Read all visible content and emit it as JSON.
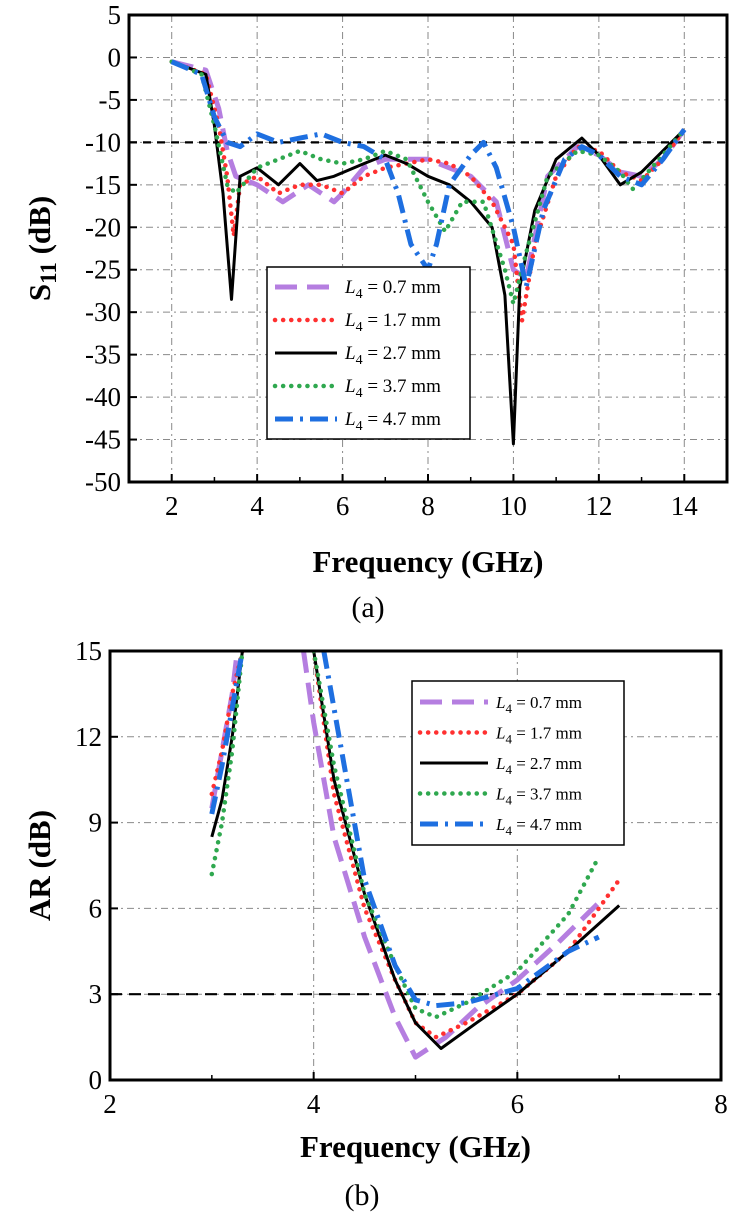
{
  "chart_data": [
    {
      "id": "a",
      "type": "line",
      "panel_label": "(a)",
      "xlabel": "Frequency (GHz)",
      "ylabel_main": "S",
      "ylabel_sub": "11",
      "ylabel_unit": " (dB)",
      "xlim": [
        1,
        15
      ],
      "ylim": [
        -50,
        5
      ],
      "xticks": [
        2,
        4,
        6,
        8,
        10,
        12,
        14
      ],
      "xtick_labels": [
        "2",
        "4",
        "6",
        "8",
        "10",
        "12",
        "14"
      ],
      "yticks": [
        5,
        0,
        -5,
        -10,
        -15,
        -20,
        -25,
        -30,
        -35,
        -40,
        -45,
        -50
      ],
      "ytick_labels": [
        "5",
        "0",
        "-5",
        "-10",
        "-15",
        "-20",
        "-25",
        "-30",
        "-35",
        "-40",
        "-45",
        "-50"
      ],
      "reference_line": -10,
      "legend_position": "lower-center",
      "series": [
        {
          "name": "L4 = 0.7 mm",
          "legend_var": "L",
          "legend_sub": "4",
          "legend_rest": " = 0.7 mm",
          "color": "#b57ee0",
          "style": "dash",
          "x": [
            2,
            2.8,
            3.1,
            3.3,
            3.5,
            4,
            4.6,
            5.2,
            5.8,
            6,
            6.5,
            7,
            8,
            9,
            9.6,
            10,
            10.3,
            10.8,
            11.5,
            12,
            12.5,
            13,
            13.5,
            14
          ],
          "y": [
            -0.5,
            -1.5,
            -6,
            -11,
            -14,
            -15,
            -17,
            -15,
            -17,
            -16,
            -13,
            -12,
            -12,
            -14,
            -17,
            -25,
            -26,
            -14,
            -10.5,
            -11.5,
            -13.5,
            -14,
            -12,
            -8.5
          ]
        },
        {
          "name": "L4 = 1.7 mm",
          "legend_var": "L",
          "legend_sub": "4",
          "legend_rest": " = 1.7 mm",
          "color": "#ff3030",
          "style": "dot",
          "x": [
            2,
            2.8,
            3.1,
            3.3,
            3.45,
            3.6,
            4,
            4.5,
            5,
            5.5,
            6,
            6.5,
            7,
            7.5,
            8,
            8.5,
            9,
            9.5,
            10,
            10.2,
            10.5,
            11,
            11.5,
            12,
            12.5,
            13,
            13.5,
            14
          ],
          "y": [
            -0.5,
            -2,
            -8,
            -14,
            -21,
            -15,
            -14,
            -16,
            -15,
            -15,
            -16,
            -14,
            -13,
            -12.5,
            -12,
            -12.5,
            -14,
            -17,
            -22,
            -31,
            -22,
            -14,
            -10.5,
            -11,
            -13.5,
            -14.5,
            -12,
            -8.5
          ]
        },
        {
          "name": "L4 = 2.7 mm",
          "legend_var": "L",
          "legend_sub": "4",
          "legend_rest": " = 2.7 mm",
          "color": "#000000",
          "style": "solid",
          "x": [
            2,
            2.8,
            3.0,
            3.2,
            3.4,
            3.6,
            4,
            4.5,
            5,
            5.4,
            5.8,
            6.5,
            7,
            7.5,
            8,
            8.5,
            9,
            9.5,
            9.8,
            10,
            10.15,
            10.5,
            11,
            11.6,
            12,
            12.5,
            13,
            14
          ],
          "y": [
            -0.5,
            -2,
            -8,
            -16,
            -28.5,
            -14,
            -13,
            -15,
            -12.5,
            -14.5,
            -14,
            -12.5,
            -11.5,
            -12.5,
            -14,
            -15,
            -17,
            -20,
            -28,
            -45.5,
            -27,
            -18,
            -12,
            -9.5,
            -11.5,
            -15,
            -13.5,
            -8.5
          ]
        },
        {
          "name": "L4 = 3.7 mm",
          "legend_var": "L",
          "legend_sub": "4",
          "legend_rest": " = 3.7 mm",
          "color": "#2fa84f",
          "style": "dot",
          "x": [
            2,
            2.7,
            3.0,
            3.3,
            3.5,
            4,
            4.5,
            5,
            5.5,
            6,
            6.5,
            7,
            7.5,
            8,
            8.4,
            8.8,
            9.3,
            9.8,
            10,
            10.3,
            10.8,
            11.5,
            12,
            12.5,
            12.8,
            13.5,
            14
          ],
          "y": [
            -0.5,
            -2,
            -8,
            -15,
            -16,
            -13,
            -12,
            -11,
            -12,
            -12.5,
            -12,
            -11,
            -12,
            -17,
            -20.5,
            -17,
            -17,
            -25,
            -29,
            -23,
            -14,
            -11,
            -11.5,
            -13.5,
            -15.5,
            -11.5,
            -8.5
          ]
        },
        {
          "name": "L4 = 4.7 mm",
          "legend_var": "L",
          "legend_sub": "4",
          "legend_rest": " = 4.7 mm",
          "color": "#1e6fe0",
          "style": "dashdot",
          "x": [
            2,
            2.7,
            3.0,
            3.3,
            3.6,
            4,
            4.5,
            5,
            5.5,
            6,
            6.5,
            7,
            7.3,
            7.6,
            8,
            8.2,
            8.5,
            9,
            9.3,
            9.6,
            10,
            10.3,
            10.7,
            11.2,
            11.6,
            12,
            12.5,
            13,
            13.5,
            14
          ],
          "y": [
            -0.5,
            -2,
            -7,
            -10,
            -10.5,
            -9,
            -10,
            -9.5,
            -9,
            -10,
            -10.5,
            -12,
            -16,
            -22,
            -25,
            -22,
            -15,
            -11.5,
            -10,
            -13,
            -20,
            -27,
            -18,
            -12,
            -10.5,
            -11.5,
            -14,
            -15,
            -12,
            -8.5
          ]
        }
      ]
    },
    {
      "id": "b",
      "type": "line",
      "panel_label": "(b)",
      "xlabel": "Frequency (GHz)",
      "ylabel": "AR (dB)",
      "xlim": [
        2,
        8
      ],
      "ylim": [
        0,
        15
      ],
      "xticks": [
        2,
        4,
        6,
        8
      ],
      "xtick_labels": [
        "2",
        "4",
        "6",
        "8"
      ],
      "yticks": [
        0,
        3,
        6,
        9,
        12,
        15
      ],
      "ytick_labels": [
        "0",
        "3",
        "6",
        "9",
        "12",
        "15"
      ],
      "reference_line": 3,
      "legend_position": "top-right",
      "series": [
        {
          "name": "L4 = 0.7 mm",
          "legend_var": "L",
          "legend_sub": "4",
          "legend_rest": " = 0.7 mm",
          "color": "#b57ee0",
          "style": "dash",
          "x": [
            3.0,
            3.1,
            3.2,
            3.25,
            null,
            3.9,
            4.0,
            4.2,
            4.5,
            4.8,
            5.0,
            5.3,
            5.6,
            6.0,
            6.4,
            6.8
          ],
          "y": [
            9.5,
            11.5,
            13.5,
            15,
            null,
            15,
            12.5,
            8.5,
            5,
            2.2,
            0.8,
            1.5,
            2.5,
            3.5,
            4.8,
            6.2
          ]
        },
        {
          "name": "L4 = 1.7 mm",
          "legend_var": "L",
          "legend_sub": "4",
          "legend_rest": " = 1.7 mm",
          "color": "#ff3030",
          "style": "dot",
          "x": [
            3.0,
            3.1,
            3.2,
            3.3,
            null,
            4.0,
            4.2,
            4.5,
            4.8,
            5.0,
            5.2,
            5.5,
            6.0,
            6.5,
            7.0
          ],
          "y": [
            10,
            11.5,
            13.5,
            15,
            null,
            15,
            10,
            6,
            3.5,
            2,
            1.5,
            2,
            3,
            4.5,
            7
          ]
        },
        {
          "name": "L4 = 2.7 mm",
          "legend_var": "L",
          "legend_sub": "4",
          "legend_rest": " = 2.7 mm",
          "color": "#000000",
          "style": "solid",
          "x": [
            3.0,
            3.1,
            3.2,
            3.3,
            null,
            4.0,
            4.2,
            4.5,
            4.8,
            5.0,
            5.25,
            5.6,
            6.0,
            6.5,
            7.0
          ],
          "y": [
            8.5,
            9.8,
            12,
            15,
            null,
            15,
            10.5,
            6.5,
            3.5,
            2,
            1.1,
            2,
            3,
            4.5,
            6.1
          ]
        },
        {
          "name": "L4 = 3.7 mm",
          "legend_var": "L",
          "legend_sub": "4",
          "legend_rest": " = 3.7 mm",
          "color": "#2fa84f",
          "style": "dot",
          "x": [
            3.0,
            3.1,
            3.2,
            3.3,
            null,
            4.0,
            4.2,
            4.5,
            4.8,
            5.0,
            5.2,
            5.5,
            6.0,
            6.5,
            6.8
          ],
          "y": [
            7.2,
            9,
            11.5,
            15,
            null,
            15,
            11,
            6.5,
            4,
            2.5,
            2.2,
            2.7,
            3.8,
            5.8,
            7.8
          ]
        },
        {
          "name": "L4 = 4.7 mm",
          "legend_var": "L",
          "legend_sub": "4",
          "legend_rest": " = 4.7 mm",
          "color": "#1e6fe0",
          "style": "dashdot",
          "x": [
            3.0,
            3.1,
            3.2,
            3.3,
            null,
            4.1,
            4.3,
            4.5,
            4.8,
            5.0,
            5.2,
            5.5,
            6.0,
            6.5,
            6.8
          ],
          "y": [
            9.3,
            11,
            13,
            15,
            null,
            15,
            11,
            7,
            4,
            2.8,
            2.6,
            2.7,
            3.2,
            4.5,
            5
          ]
        }
      ]
    }
  ]
}
